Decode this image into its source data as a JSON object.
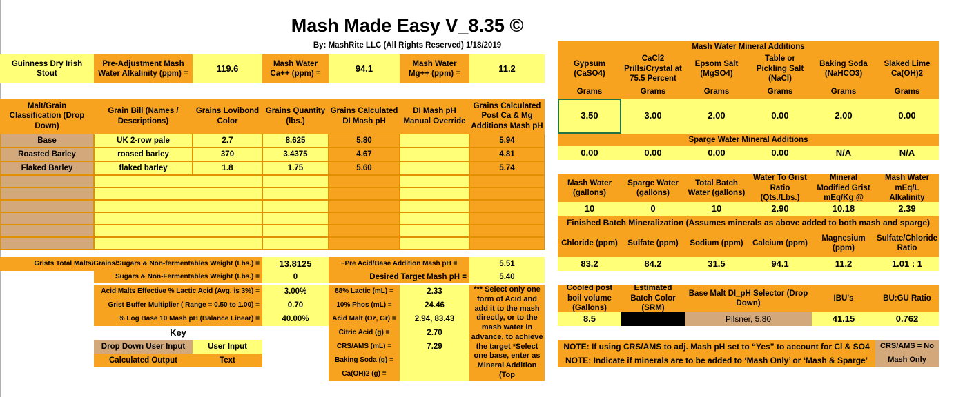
{
  "title": "Mash Made Easy V_8.35 ©",
  "byline": "By: MashRite LLC (All Rights Reserved) 1/18/2019",
  "recipe_name": "Guinness Dry Irish Stout",
  "top": {
    "alk_label": "Pre-Adjustment Mash Water Alkalinity (ppm) =",
    "alk_value": "119.6",
    "ca_label": "Mash Water Ca++ (ppm) =",
    "ca_value": "94.1",
    "mg_label": "Mash Water Mg++ (ppm) =",
    "mg_value": "11.2"
  },
  "grain_headers": [
    "Malt/Grain Classification (Drop Down)",
    "Grain Bill (Names / Descriptions)",
    "Grains Lovibond Color",
    "Grains Quantity (lbs.)",
    "Grains Calculated DI Mash pH",
    "DI Mash pH Manual Override",
    "Grains Calculated Post Ca & Mg Additions Mash pH"
  ],
  "grains": [
    {
      "cls": "Base",
      "name": "UK 2-row pale",
      "lov": "2.7",
      "qty": "8.625",
      "di": "5.80",
      "ovr": "",
      "post": "5.94"
    },
    {
      "cls": "Roasted Barley",
      "name": "roased barley",
      "lov": "370",
      "qty": "3.4375",
      "di": "4.67",
      "ovr": "",
      "post": "4.81"
    },
    {
      "cls": "Flaked Barley",
      "name": "flaked barley",
      "lov": "1.8",
      "qty": "1.75",
      "di": "5.60",
      "ovr": "",
      "post": "5.74"
    }
  ],
  "totals": {
    "weight_label": "Grists Total Malts/Grains/Sugars & Non-fermentables Weight (Lbs.) =",
    "weight_value": "13.8125",
    "pre_ph_label": "~Pre Acid/Base Addition Mash pH =",
    "pre_ph_value": "5.51",
    "sugars_label": "Sugars & Non-Fermentables Weight (Lbs.) =",
    "sugars_value": "0",
    "target_label": "Desired Target Mash pH =",
    "target_value": "5.40",
    "acid_malt_label": "Acid Malts Effective % Lactic Acid (Avg. is 3%) =",
    "acid_malt_value": "3.00%",
    "buffer_label": "Grist Buffer Multiplier ( Range = 0.50 to 1.00) =",
    "buffer_value": "0.70",
    "log_label": "% Log Base 10 Mash pH (Balance Linear) =",
    "log_value": "40.00%"
  },
  "acids": [
    {
      "label": "88% Lactic (mL) =",
      "value": "2.33"
    },
    {
      "label": "10% Phos (mL) =",
      "value": "24.46"
    },
    {
      "label": "Acid Malt (Oz, Gr) =",
      "value": "2.94, 83.43"
    },
    {
      "label": "Citric Acid (g) =",
      "value": "2.70"
    },
    {
      "label": "CRS/AMS (mL) =",
      "value": "7.29"
    },
    {
      "label": "Baking Soda (g) =",
      "value": ""
    },
    {
      "label": "Ca(OH)2 (g) =",
      "value": ""
    }
  ],
  "acid_note": "*** Select only one form of Acid and add it to the mash directly, or to the mash water in advance, to achieve the target *Select one base, enter as Mineral Addition (Top",
  "key": {
    "title": "Key",
    "drop_down": "Drop Down User Input",
    "user_input": "User Input",
    "calculated": "Calculated Output",
    "text": "Text"
  },
  "mash_minerals": {
    "title": "Mash Water Mineral Additions",
    "headers": [
      "Gypsum (CaSO4)",
      "CaCl2 Prills/Crystal at 75.5 Percent",
      "Epsom Salt (MgSO4)",
      "Table or Pickling Salt (NaCl)",
      "Baking Soda (NaHCO3)",
      "Slaked Lime Ca(OH)2"
    ],
    "unit": "Grams",
    "values": [
      "3.50",
      "3.00",
      "2.00",
      "0.00",
      "2.00",
      "0.00"
    ]
  },
  "sparge_minerals": {
    "title": "Sparge Water Mineral Additions",
    "values": [
      "0.00",
      "0.00",
      "0.00",
      "0.00",
      "N/A",
      "N/A"
    ]
  },
  "water": {
    "headers": [
      "Mash Water (gallons)",
      "Sparge Water (gallons)",
      "Total Batch Water (gallons)",
      "Water To Grist Ratio (Qts./Lbs.)",
      "Mineral Modified Grist mEq/Kg @",
      "Mash Water mEq/L Alkalinity"
    ],
    "values": [
      "10",
      "0",
      "10",
      "2.90",
      "10.18",
      "2.39"
    ]
  },
  "finished": {
    "title": "Finished Batch Mineralization (Assumes minerals as above added to both mash and sparge)",
    "headers": [
      "Chloride (ppm)",
      "Sulfate (ppm)",
      "Sodium (ppm)",
      "Calcium (ppm)",
      "Magnesium (ppm)",
      "Sulfate/Chloride Ratio"
    ],
    "values": [
      "83.2",
      "84.2",
      "31.5",
      "94.1",
      "11.2",
      "1.01 : 1"
    ]
  },
  "bottom": {
    "cooled_label": "Cooled post boil volume (Gallons)",
    "cooled_value": "8.5",
    "color_label": "Estimated Batch Color (SRM)",
    "color_value": "",
    "selector_label": "Base Malt DI_pH Selector (Drop Down)",
    "selector_value": "Pilsner, 5.80",
    "ibu_label": "IBU's",
    "ibu_value": "41.15",
    "bugu_label": "BU:GU Ratio",
    "bugu_value": "0.762"
  },
  "notes": {
    "crs": "NOTE: If using CRS/AMS to adj. Mash pH set to “Yes” to account for Cl & SO4",
    "crs_value": "CRS/AMS = No",
    "minerals": "NOTE: Indicate if minerals are to be added to ‘Mash Only’ or ‘Mash & Sparge’",
    "minerals_value": "Mash Only"
  },
  "colors": {
    "orange": "#f7a320",
    "yellow": "#ffff78",
    "tan": "#d3a87a",
    "black": "#000000"
  }
}
